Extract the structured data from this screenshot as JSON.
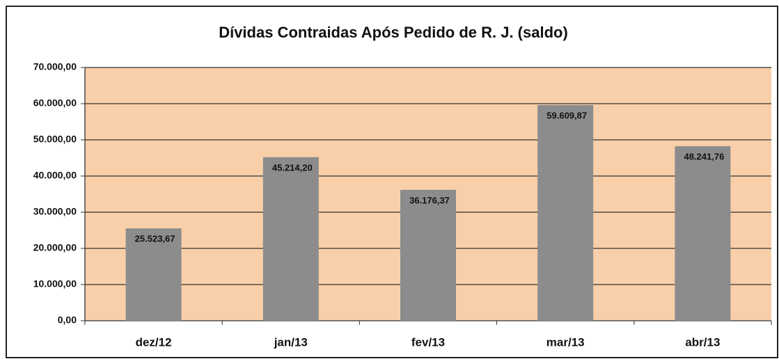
{
  "chart_data": {
    "type": "bar",
    "title": "Dívidas Contraidas Após Pedido de R. J. (saldo)",
    "categories": [
      "dez/12",
      "jan/13",
      "fev/13",
      "mar/13",
      "abr/13"
    ],
    "values": [
      25523.67,
      45214.2,
      36176.37,
      59609.87,
      48241.76
    ],
    "value_labels": [
      "25.523,67",
      "45.214,20",
      "36.176,37",
      "59.609,87",
      "48.241,76"
    ],
    "color": "#8c8c8c",
    "ylim": [
      0,
      70000
    ],
    "yticks": [
      {
        "value": 0,
        "label": "0,00"
      },
      {
        "value": 10000,
        "label": "10.000,00"
      },
      {
        "value": 20000,
        "label": "20.000,00"
      },
      {
        "value": 30000,
        "label": "30.000,00"
      },
      {
        "value": 40000,
        "label": "40.000,00"
      },
      {
        "value": 50000,
        "label": "50.000,00"
      },
      {
        "value": 60000,
        "label": "60.000,00"
      },
      {
        "value": 70000,
        "label": "70.000,00"
      }
    ],
    "grid": true
  }
}
